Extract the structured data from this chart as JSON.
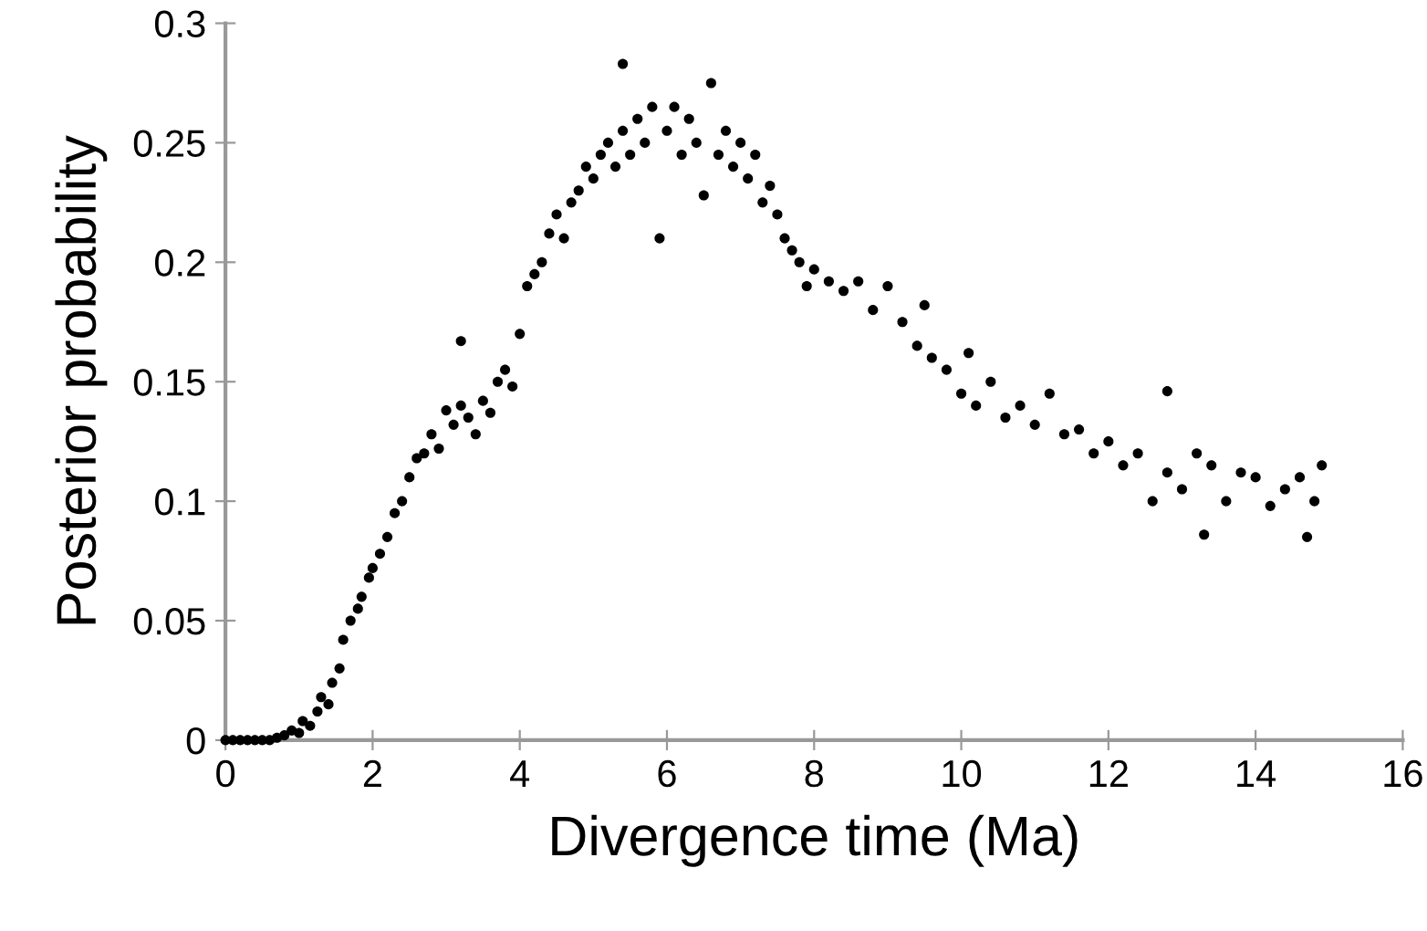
{
  "chart_data": {
    "type": "scatter",
    "xlabel": "Divergence time (Ma)",
    "ylabel": "Posterior probability",
    "xlim": [
      0,
      16
    ],
    "ylim": [
      0,
      0.3
    ],
    "xticks": [
      0,
      2,
      4,
      6,
      8,
      10,
      12,
      14,
      16
    ],
    "yticks": [
      0,
      0.05,
      0.1,
      0.15,
      0.2,
      0.25,
      0.3
    ],
    "grid": false,
    "marker": "circle",
    "series": [
      {
        "color": "#000000",
        "x": [
          0.0,
          0.1,
          0.2,
          0.3,
          0.4,
          0.5,
          0.6,
          0.7,
          0.8,
          0.9,
          1.0,
          1.05,
          1.15,
          1.25,
          1.3,
          1.4,
          1.45,
          1.55,
          1.6,
          1.7,
          1.8,
          1.85,
          1.95,
          2.0,
          2.1,
          2.2,
          2.3,
          2.4,
          2.5,
          2.6,
          2.7,
          2.8,
          2.9,
          3.0,
          3.1,
          3.2,
          3.2,
          3.3,
          3.4,
          3.5,
          3.6,
          3.7,
          3.8,
          3.9,
          4.0,
          4.1,
          4.2,
          4.3,
          4.4,
          4.5,
          4.6,
          4.7,
          4.8,
          4.9,
          5.0,
          5.1,
          5.2,
          5.3,
          5.4,
          5.4,
          5.5,
          5.6,
          5.7,
          5.8,
          5.9,
          6.0,
          6.1,
          6.2,
          6.3,
          6.4,
          6.5,
          6.6,
          6.7,
          6.8,
          6.9,
          7.0,
          7.1,
          7.2,
          7.3,
          7.4,
          7.5,
          7.6,
          7.7,
          7.8,
          7.9,
          8.0,
          8.2,
          8.4,
          8.6,
          8.8,
          9.0,
          9.2,
          9.4,
          9.5,
          9.6,
          9.8,
          10.0,
          10.1,
          10.2,
          10.4,
          10.6,
          10.8,
          11.0,
          11.2,
          11.4,
          11.6,
          11.8,
          12.0,
          12.2,
          12.4,
          12.6,
          12.8,
          12.8,
          13.0,
          13.2,
          13.3,
          13.4,
          13.6,
          13.8,
          14.0,
          14.2,
          14.4,
          14.6,
          14.7,
          14.8,
          14.9
        ],
        "values": [
          0.0,
          0.0,
          0.0,
          0.0,
          0.0,
          0.0,
          0.0,
          0.001,
          0.002,
          0.004,
          0.003,
          0.008,
          0.006,
          0.012,
          0.018,
          0.015,
          0.024,
          0.03,
          0.042,
          0.05,
          0.055,
          0.06,
          0.068,
          0.072,
          0.078,
          0.085,
          0.095,
          0.1,
          0.11,
          0.118,
          0.12,
          0.128,
          0.122,
          0.138,
          0.132,
          0.167,
          0.14,
          0.135,
          0.128,
          0.142,
          0.137,
          0.15,
          0.155,
          0.148,
          0.17,
          0.19,
          0.195,
          0.2,
          0.212,
          0.22,
          0.21,
          0.225,
          0.23,
          0.24,
          0.235,
          0.245,
          0.25,
          0.24,
          0.283,
          0.255,
          0.245,
          0.26,
          0.25,
          0.265,
          0.21,
          0.255,
          0.265,
          0.245,
          0.26,
          0.25,
          0.228,
          0.275,
          0.245,
          0.255,
          0.24,
          0.25,
          0.235,
          0.245,
          0.225,
          0.232,
          0.22,
          0.21,
          0.205,
          0.2,
          0.19,
          0.197,
          0.192,
          0.188,
          0.192,
          0.18,
          0.19,
          0.175,
          0.165,
          0.182,
          0.16,
          0.155,
          0.145,
          0.162,
          0.14,
          0.15,
          0.135,
          0.14,
          0.132,
          0.145,
          0.128,
          0.13,
          0.12,
          0.125,
          0.115,
          0.12,
          0.1,
          0.112,
          0.146,
          0.105,
          0.12,
          0.086,
          0.115,
          0.1,
          0.112,
          0.11,
          0.098,
          0.105,
          0.11,
          0.085,
          0.1,
          0.115
        ]
      }
    ]
  }
}
